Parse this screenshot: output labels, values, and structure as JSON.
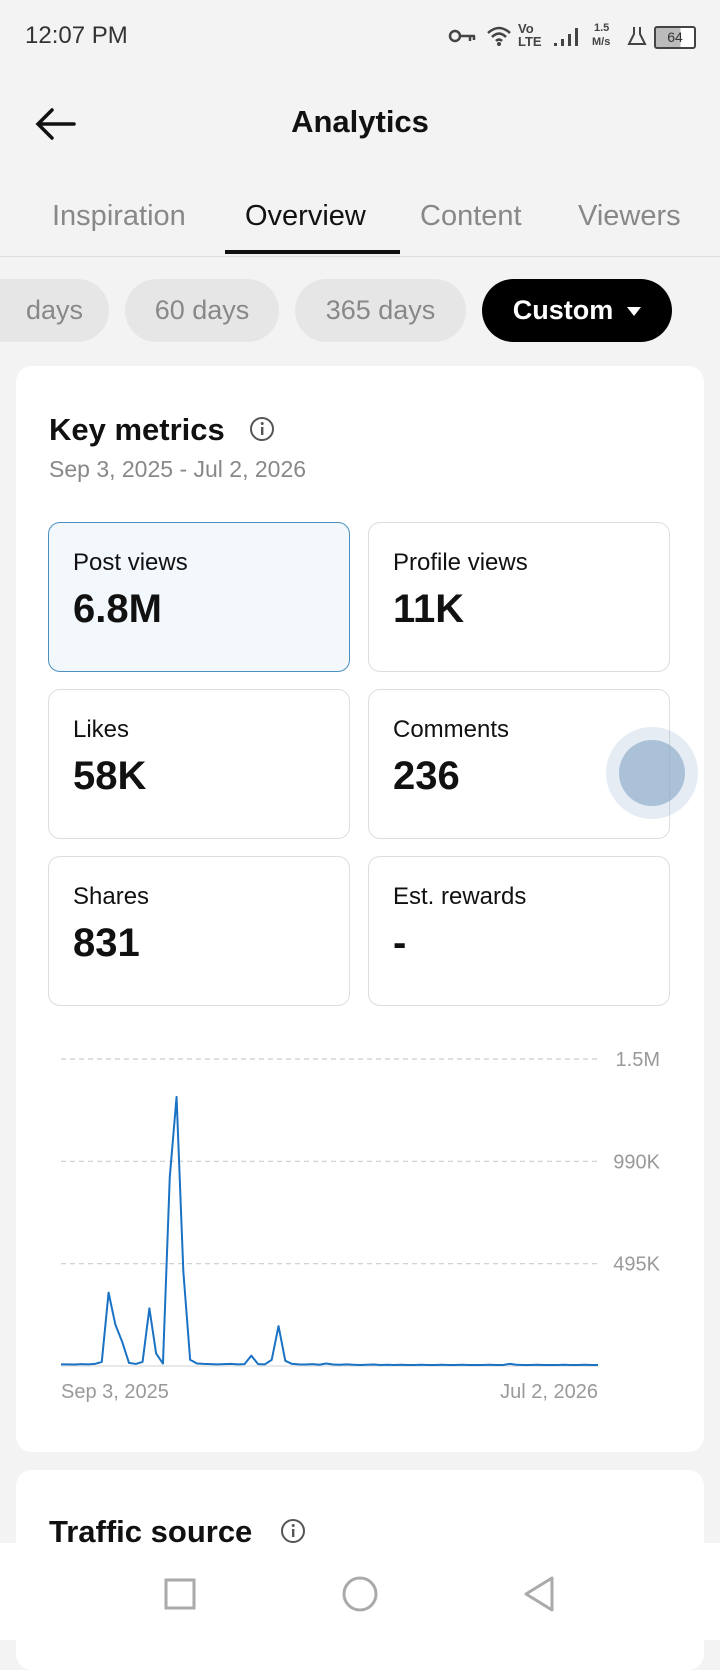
{
  "status": {
    "time": "12:07 PM",
    "network_top": "Vo",
    "network_bottom": "LTE",
    "speed_value": "1.5",
    "speed_unit": "M/s",
    "battery": "64"
  },
  "header": {
    "title": "Analytics"
  },
  "tabs": [
    "Inspiration",
    "Overview",
    "Content",
    "Viewers"
  ],
  "chips": [
    "days",
    "60 days",
    "365 days",
    "Custom"
  ],
  "key_metrics": {
    "title": "Key metrics",
    "date_range": "Sep 3, 2025 - Jul 2, 2026",
    "metrics": [
      {
        "label": "Post views",
        "value": "6.8M"
      },
      {
        "label": "Profile views",
        "value": "11K"
      },
      {
        "label": "Likes",
        "value": "58K"
      },
      {
        "label": "Comments",
        "value": "236"
      },
      {
        "label": "Shares",
        "value": "831"
      },
      {
        "label": "Est. rewards",
        "value": "-"
      }
    ]
  },
  "chart_data": {
    "type": "line",
    "categories": [
      "Sep 3, 2025",
      null,
      null,
      null,
      null,
      null,
      null,
      null,
      null,
      null,
      null,
      null,
      null,
      null,
      null,
      null,
      null,
      null,
      null,
      null,
      null,
      null,
      null,
      null,
      null,
      null,
      null,
      null,
      null,
      null,
      null,
      null,
      null,
      null,
      null,
      null,
      null,
      null,
      null,
      null,
      null,
      null,
      null,
      null,
      null,
      null,
      null,
      null,
      null,
      null,
      null,
      null,
      null,
      null,
      null,
      null,
      null,
      null,
      null,
      null,
      null,
      null,
      null,
      null,
      null,
      null,
      null,
      null,
      null,
      null,
      null,
      null,
      null,
      null,
      null,
      null,
      null,
      null,
      null,
      "Jul 2, 2026"
    ],
    "series": [
      {
        "name": "Post views",
        "color": "#1a72c4",
        "values": [
          8000,
          8000,
          7000,
          9000,
          8000,
          10000,
          20000,
          355000,
          200000,
          117000,
          15000,
          10000,
          20000,
          279000,
          60000,
          12000,
          912000,
          1302000,
          456000,
          30000,
          12000,
          10000,
          9000,
          8000,
          9000,
          10000,
          8000,
          9000,
          50000,
          9000,
          8000,
          30000,
          193000,
          25000,
          10000,
          8000,
          7000,
          9000,
          6000,
          12000,
          7000,
          6000,
          8000,
          6000,
          5000,
          6000,
          7000,
          5000,
          6000,
          5000,
          6000,
          5000,
          5000,
          6000,
          5000,
          5000,
          6000,
          5000,
          5000,
          6000,
          5000,
          5000,
          5000,
          6000,
          5000,
          5000,
          10000,
          6000,
          5000,
          5000,
          6000,
          5000,
          5000,
          5000,
          6000,
          5000,
          5000,
          6000,
          5000,
          5000
        ]
      }
    ],
    "ylim": [
      0,
      1485000
    ],
    "yticks": [
      {
        "value": 495000,
        "label": "495K"
      },
      {
        "value": 990000,
        "label": "990K"
      },
      {
        "value": 1485000,
        "label": "1.5M"
      }
    ],
    "grid": true
  },
  "traffic_source": {
    "title": "Traffic source"
  }
}
